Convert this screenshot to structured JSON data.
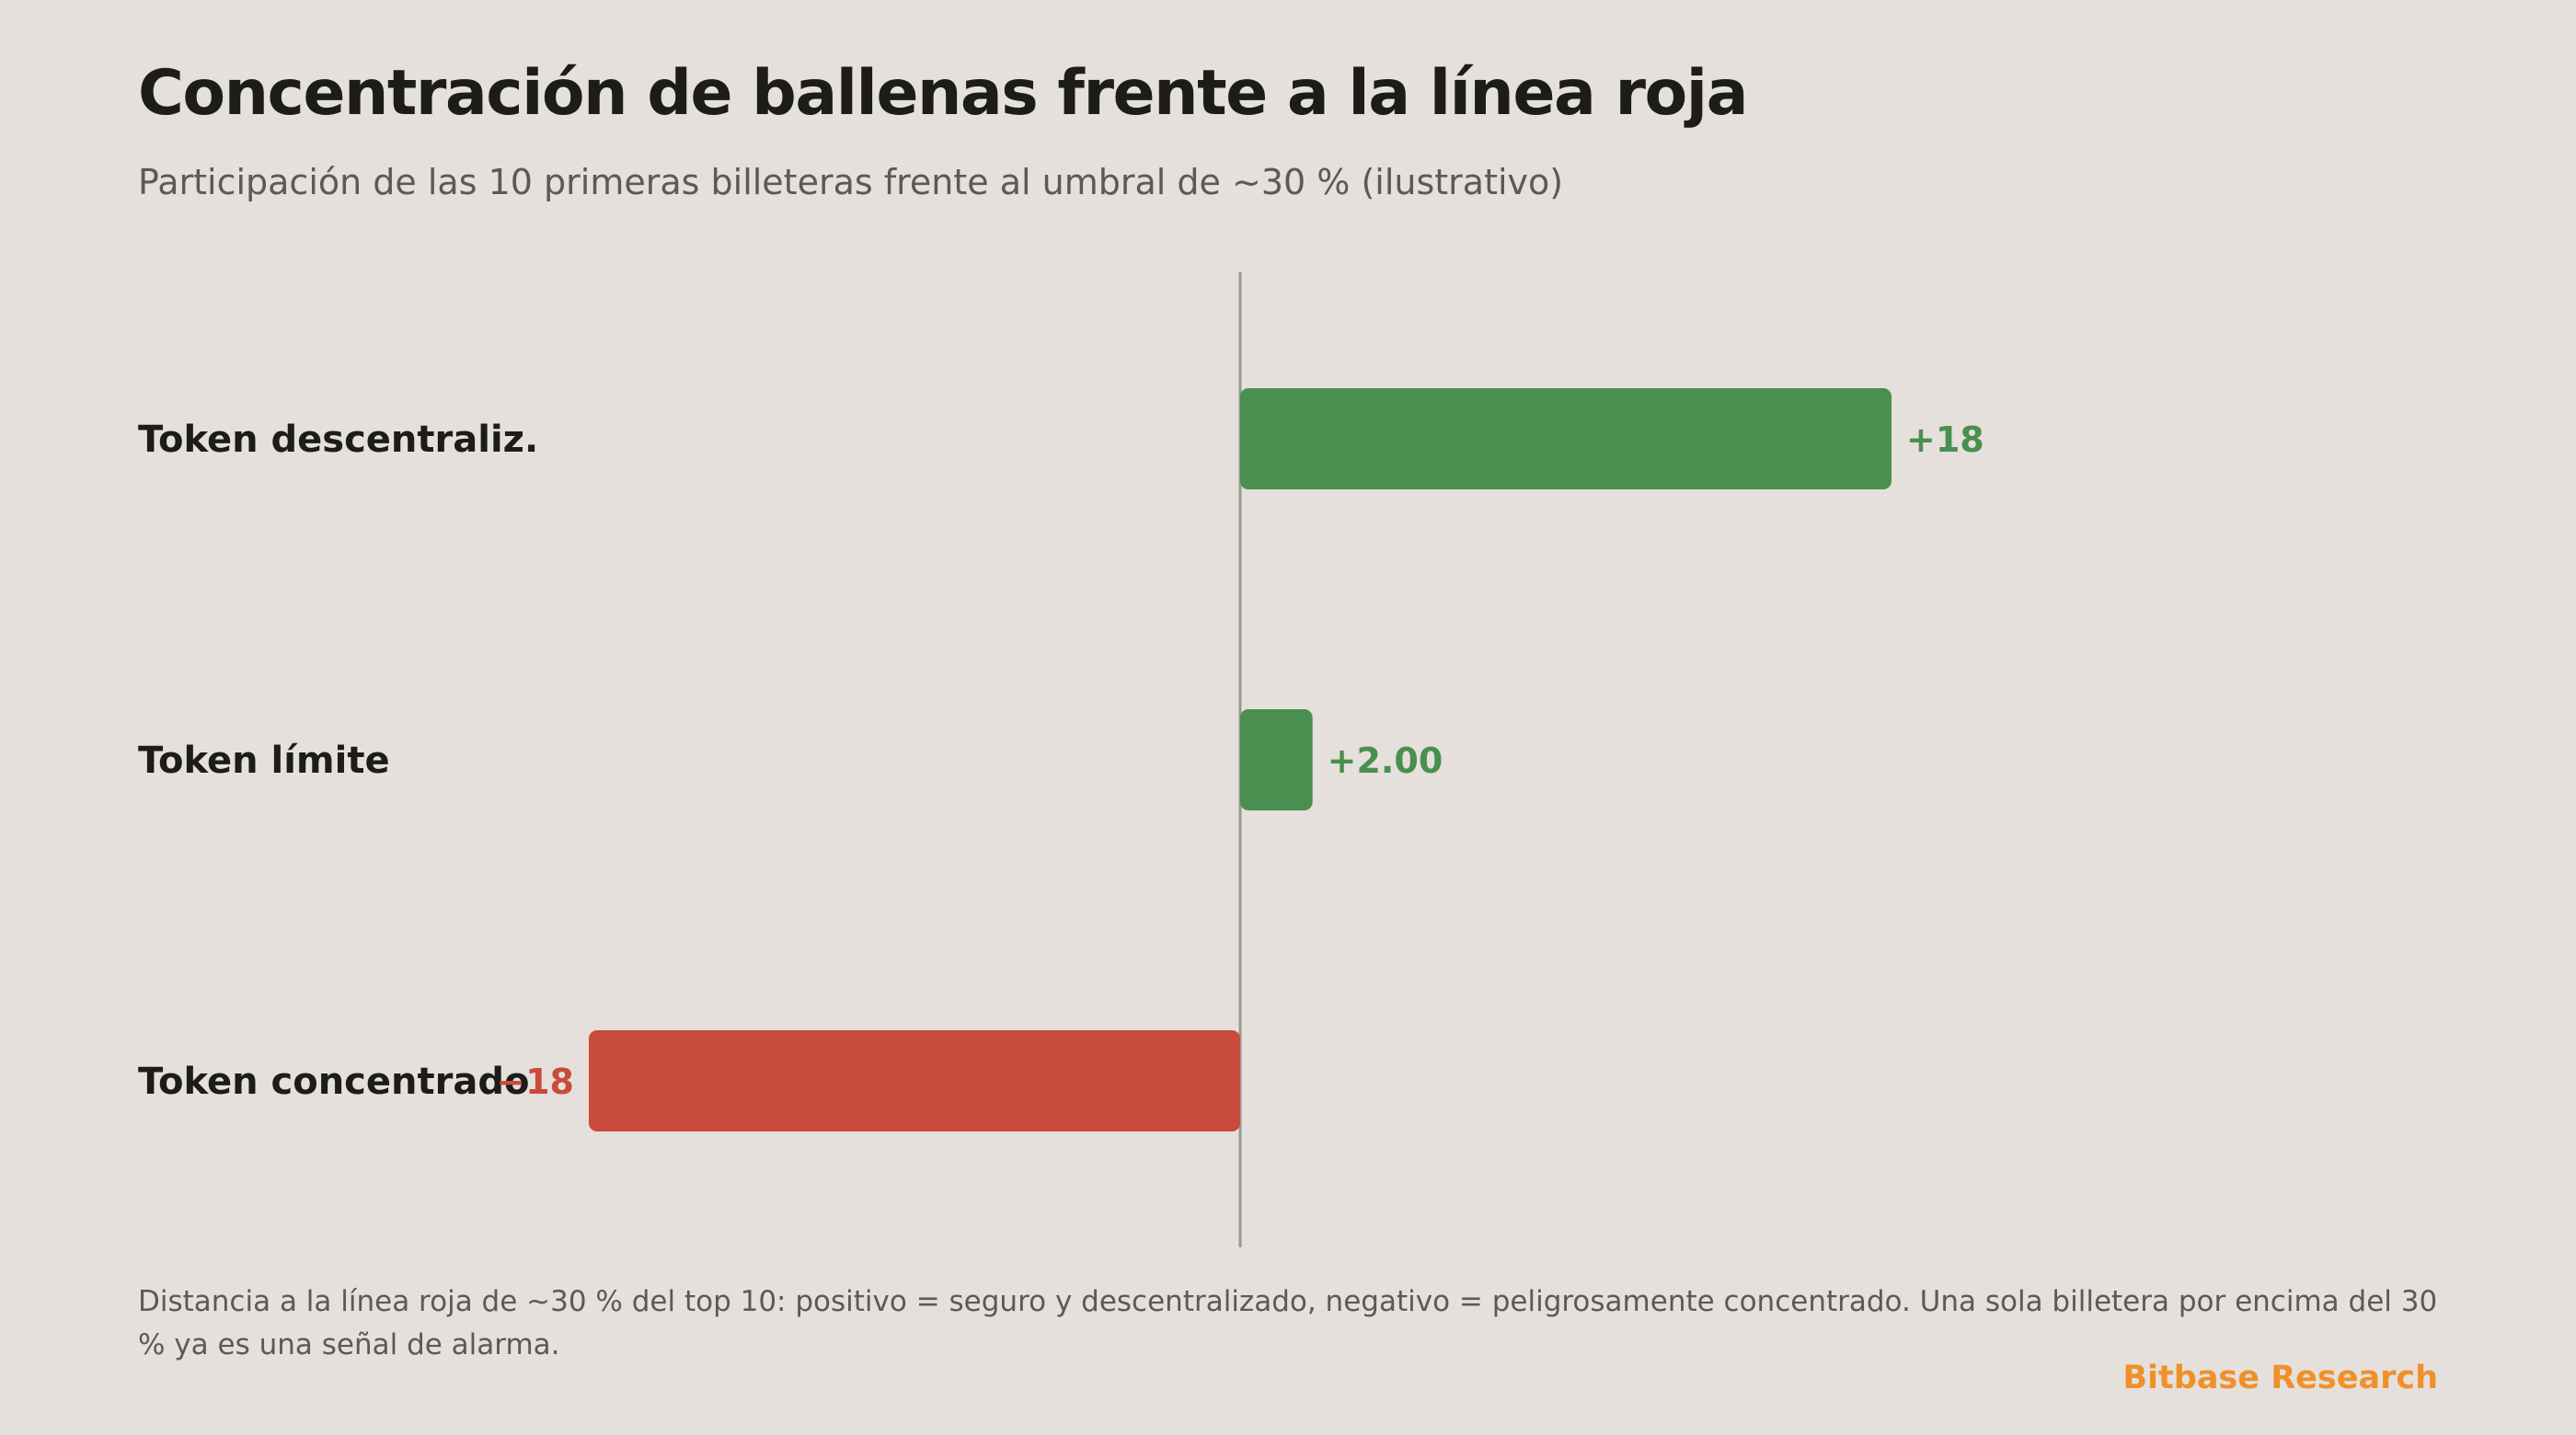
{
  "title": "Concentración de ballenas frente a la línea roja",
  "subtitle": "Participación de las 10 primeras billeteras frente al umbral de ~30 % (ilustrativo)",
  "footnote": "Distancia a la línea roja de ~30 % del top 10: positivo = seguro y descentralizado, negativo = peligrosamente concentrado. Una sola billetera por encima del 30 % ya es una señal de alarma.",
  "brand": "Bitbase Research",
  "colors": {
    "positive": "#4a8f4f",
    "negative": "#c84b3c",
    "axis": "#9a9893",
    "background": "#e5e0db"
  },
  "chart_data": {
    "type": "bar",
    "orientation": "horizontal",
    "title": "Concentración de ballenas frente a la línea roja",
    "subtitle": "Participación de las 10 primeras billeteras frente al umbral de ~30 % (ilustrativo)",
    "xlim": [
      -30,
      40
    ],
    "grid": false,
    "legend": "none",
    "categories": [
      "Token descentraliz.",
      "Token límite",
      "Token concentrado"
    ],
    "values": [
      18,
      2,
      -18
    ],
    "value_labels": [
      "+18",
      "+2.00",
      "−18"
    ]
  }
}
